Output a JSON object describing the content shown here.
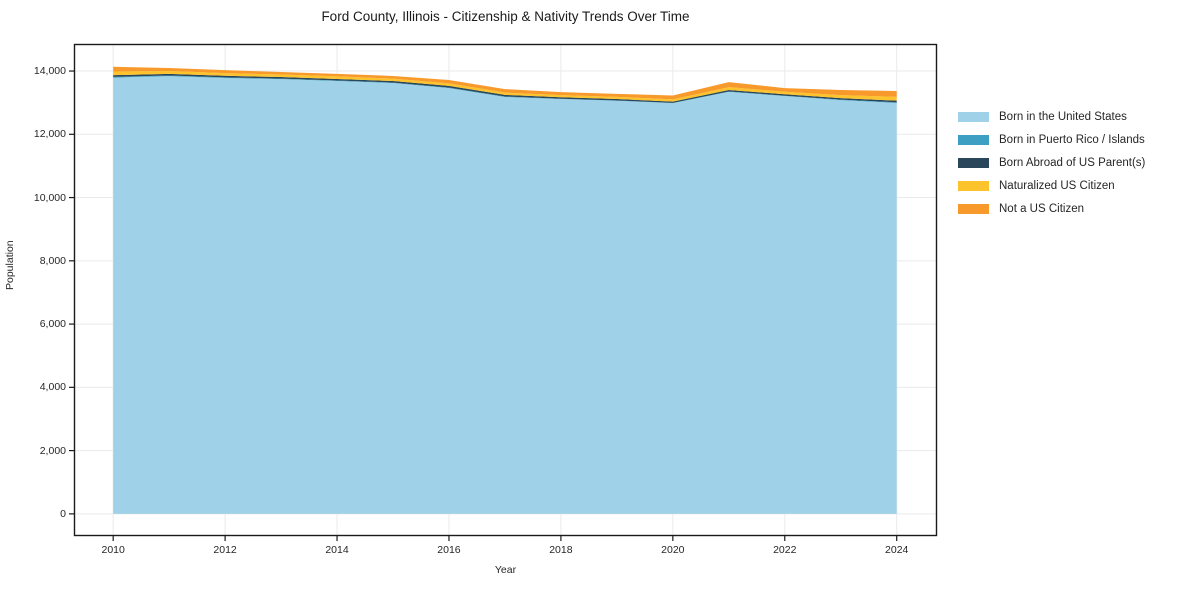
{
  "figure": {
    "title": "Ford County, Illinois - Citizenship & Nativity Trends Over Time",
    "x_axis_title": "Year",
    "y_axis_title": "Population"
  },
  "chart_data": {
    "type": "area",
    "stacked": true,
    "title": "Ford County, Illinois - Citizenship & Nativity Trends Over Time",
    "xlabel": "Year",
    "ylabel": "Population",
    "grid": true,
    "grid_color": "#eaeaea",
    "spine_color": "#1a1a1a",
    "background_color": "#ffffff",
    "legend_position": "right-outside",
    "x": [
      2010,
      2011,
      2012,
      2013,
      2014,
      2015,
      2016,
      2017,
      2018,
      2019,
      2020,
      2021,
      2022,
      2023,
      2024
    ],
    "xticks": [
      2010,
      2012,
      2014,
      2016,
      2018,
      2020,
      2022,
      2024
    ],
    "yticks": [
      0,
      2000,
      4000,
      6000,
      8000,
      10000,
      12000,
      14000
    ],
    "xlim": [
      2009.3,
      2024.72
    ],
    "ylim": [
      -700,
      14855
    ],
    "series": [
      {
        "name": "Born in the United States",
        "color": "#9fd2e8",
        "values": [
          13790,
          13840,
          13780,
          13745,
          13685,
          13620,
          13460,
          13180,
          13115,
          13060,
          12985,
          13340,
          13210,
          13080,
          12990
        ]
      },
      {
        "name": "Born in Puerto Rico / Islands",
        "color": "#3d9fc1",
        "values": [
          25,
          20,
          20,
          15,
          15,
          15,
          15,
          15,
          10,
          10,
          10,
          15,
          10,
          15,
          20
        ]
      },
      {
        "name": "Born Abroad of US Parent(s)",
        "color": "#29465b",
        "values": [
          55,
          50,
          50,
          50,
          50,
          50,
          55,
          50,
          45,
          45,
          40,
          45,
          45,
          50,
          55
        ]
      },
      {
        "name": "Naturalized US Citizen",
        "color": "#fcc32c",
        "values": [
          115,
          90,
          85,
          80,
          80,
          75,
          80,
          75,
          70,
          70,
          70,
          90,
          80,
          95,
          120
        ]
      },
      {
        "name": "Not a US Citizen",
        "color": "#f8992b",
        "values": [
          150,
          95,
          95,
          80,
          80,
          85,
          105,
          110,
          95,
          95,
          120,
          160,
          115,
          160,
          185
        ]
      }
    ]
  }
}
